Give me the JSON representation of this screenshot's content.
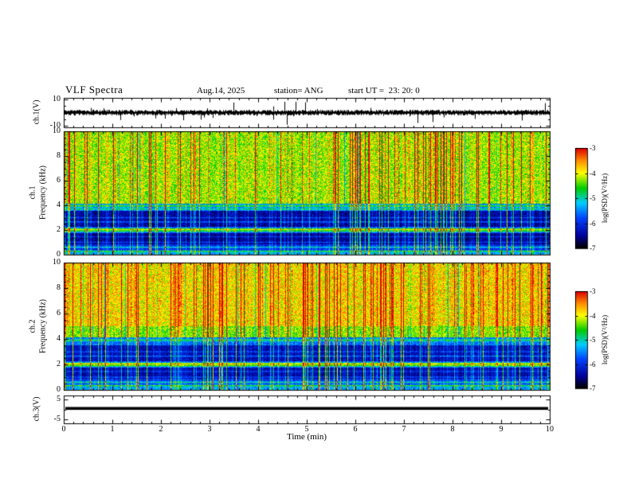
{
  "header": {
    "title": "VLF Spectra",
    "date": "Aug.14, 2025",
    "station": "station= ANG",
    "start_ut": "start UT =  23: 20: 0"
  },
  "xaxis": {
    "label": "Time (min)",
    "min": 0,
    "max": 10,
    "ticks": [
      0,
      1,
      2,
      3,
      4,
      5,
      6,
      7,
      8,
      9,
      10
    ]
  },
  "panels": {
    "wave1": {
      "ylabel": "ch.1(V)",
      "yticks": [
        10,
        -10
      ]
    },
    "spec1": {
      "ylabel_ch": "ch.1",
      "ylabel_freq": "Frequency (kHz)",
      "yticks": [
        10,
        8,
        6,
        4,
        2,
        0
      ]
    },
    "spec2": {
      "ylabel_ch": "ch.2",
      "ylabel_freq": "Frequency (kHz)",
      "yticks": [
        10,
        8,
        6,
        4,
        2,
        0
      ]
    },
    "wave3": {
      "ylabel": "ch.3(V)",
      "yticks": [
        5,
        -5
      ]
    }
  },
  "colorbar": {
    "label": "log(PSD)(V²/Hz)",
    "ticks": [
      -3,
      -4,
      -5,
      -6,
      -7
    ],
    "min": -7,
    "max": -3,
    "stops": [
      {
        "t": 0.0,
        "color": "#000000"
      },
      {
        "t": 0.12,
        "color": "#000099"
      },
      {
        "t": 0.3,
        "color": "#0044ff"
      },
      {
        "t": 0.45,
        "color": "#00ccff"
      },
      {
        "t": 0.6,
        "color": "#00cc00"
      },
      {
        "t": 0.75,
        "color": "#ffff00"
      },
      {
        "t": 0.88,
        "color": "#ff8800"
      },
      {
        "t": 1.0,
        "color": "#dd0000"
      }
    ]
  },
  "chart_data": [
    {
      "type": "line",
      "id": "ch1_waveform",
      "ylabel": "ch.1(V)",
      "xlim": [
        0,
        10
      ],
      "ylim": [
        -11,
        11
      ],
      "yticks": [
        10,
        -10
      ],
      "description": "Broadband noisy time series centered on 0 V, typical amplitude about ±1.5 V with frequent impulsive spikes reaching toward ±8 V",
      "noise_amp": 1.5,
      "spike_prob": 0.055,
      "spike_amp": 7.5,
      "seed": 11
    },
    {
      "type": "heatmap",
      "id": "ch1_spectrogram",
      "ylabel": "ch.1 Frequency (kHz)",
      "xlim": [
        0,
        10
      ],
      "ylim": [
        0,
        10
      ],
      "yticks": [
        0,
        2,
        4,
        6,
        8,
        10
      ],
      "zlabel": "log(PSD)(V²/Hz)",
      "zlim": [
        -7,
        -3
      ],
      "description": "VLF spectrogram: bright green-yellow band above ~4 kHz crossed by dense red vertical sferic streaks; dark blue/black band ~2.3-3.6 kHz; narrow bright horizontal emission lines near 2 kHz and ~3.7-4 kHz; faint lines below 1 kHz",
      "bands": [
        {
          "f0": 4.1,
          "f1": 10.0,
          "level": -4.35,
          "noise": 0.5
        },
        {
          "f0": 3.55,
          "f1": 4.1,
          "level": -5.7,
          "noise": 0.35
        },
        {
          "f0": 2.25,
          "f1": 3.55,
          "level": -6.55,
          "noise": 0.3
        },
        {
          "f0": 1.75,
          "f1": 2.25,
          "level": -5.95,
          "noise": 0.35
        },
        {
          "f0": 0.85,
          "f1": 1.75,
          "level": -6.6,
          "noise": 0.25
        },
        {
          "f0": 0.35,
          "f1": 0.85,
          "level": -6.15,
          "noise": 0.3
        },
        {
          "f0": 0.0,
          "f1": 0.35,
          "level": -5.45,
          "noise": 0.3
        }
      ],
      "hlines": [
        {
          "f": 3.95,
          "amp": 1.0,
          "width": 0.06
        },
        {
          "f": 3.7,
          "amp": 0.7,
          "width": 0.05
        },
        {
          "f": 3.0,
          "amp": 0.55,
          "width": 0.04
        },
        {
          "f": 2.65,
          "amp": 0.75,
          "width": 0.04
        },
        {
          "f": 2.05,
          "amp": 1.8,
          "width": 0.06
        },
        {
          "f": 1.9,
          "amp": 1.1,
          "width": 0.05
        },
        {
          "f": 1.45,
          "amp": 0.45,
          "width": 0.04
        },
        {
          "f": 1.0,
          "amp": 0.55,
          "width": 0.04
        },
        {
          "f": 0.6,
          "amp": 0.9,
          "width": 0.05
        },
        {
          "f": 0.3,
          "amp": 0.7,
          "width": 0.05
        }
      ],
      "streaks": {
        "prob": 0.2,
        "min": 0.5,
        "max": 2.4,
        "base": 0.25,
        "dark_prob": 0.05,
        "dark_max": 1.4
      },
      "seed": 42
    },
    {
      "type": "heatmap",
      "id": "ch2_spectrogram",
      "ylabel": "ch.2 Frequency (kHz)",
      "xlim": [
        0,
        10
      ],
      "ylim": [
        0,
        10
      ],
      "yticks": [
        0,
        2,
        4,
        6,
        8,
        10
      ],
      "zlabel": "log(PSD)(V²/Hz)",
      "zlim": [
        -7,
        -3
      ],
      "description": "Same layout as ch.1 but more intense: orange-red dominated band above ~5 kHz, dark band ~2.3-3.5 kHz, strong horizontal emission lines near 2 kHz and below 1 kHz",
      "bands": [
        {
          "f0": 5.0,
          "f1": 10.0,
          "level": -4.0,
          "noise": 0.5
        },
        {
          "f0": 4.1,
          "f1": 5.0,
          "level": -4.45,
          "noise": 0.45
        },
        {
          "f0": 3.5,
          "f1": 4.1,
          "level": -5.75,
          "noise": 0.35
        },
        {
          "f0": 2.25,
          "f1": 3.5,
          "level": -6.45,
          "noise": 0.3
        },
        {
          "f0": 1.75,
          "f1": 2.25,
          "level": -5.85,
          "noise": 0.35
        },
        {
          "f0": 0.85,
          "f1": 1.75,
          "level": -6.5,
          "noise": 0.25
        },
        {
          "f0": 0.35,
          "f1": 0.85,
          "level": -6.05,
          "noise": 0.3
        },
        {
          "f0": 0.0,
          "f1": 0.35,
          "level": -5.5,
          "noise": 0.3
        }
      ],
      "hlines": [
        {
          "f": 3.9,
          "amp": 0.9,
          "width": 0.06
        },
        {
          "f": 3.0,
          "amp": 0.5,
          "width": 0.04
        },
        {
          "f": 2.65,
          "amp": 0.7,
          "width": 0.04
        },
        {
          "f": 2.05,
          "amp": 1.9,
          "width": 0.06
        },
        {
          "f": 1.9,
          "amp": 1.2,
          "width": 0.05
        },
        {
          "f": 1.45,
          "amp": 0.5,
          "width": 0.04
        },
        {
          "f": 1.0,
          "amp": 0.6,
          "width": 0.04
        },
        {
          "f": 0.6,
          "amp": 1.0,
          "width": 0.05
        },
        {
          "f": 0.35,
          "amp": 0.8,
          "width": 0.05
        }
      ],
      "streaks": {
        "prob": 0.24,
        "min": 0.5,
        "max": 2.5,
        "base": 0.25,
        "dark_prob": 0.04,
        "dark_max": 1.2
      },
      "seed": 77
    },
    {
      "type": "line",
      "id": "ch3_waveform",
      "ylabel": "ch.3(V)",
      "xlim": [
        0,
        10
      ],
      "ylim": [
        -7,
        7
      ],
      "yticks": [
        5,
        -5
      ],
      "value": 0.5,
      "description": "Constant flat thick trace at about +0.5 V across the full record",
      "seed": 3
    }
  ]
}
